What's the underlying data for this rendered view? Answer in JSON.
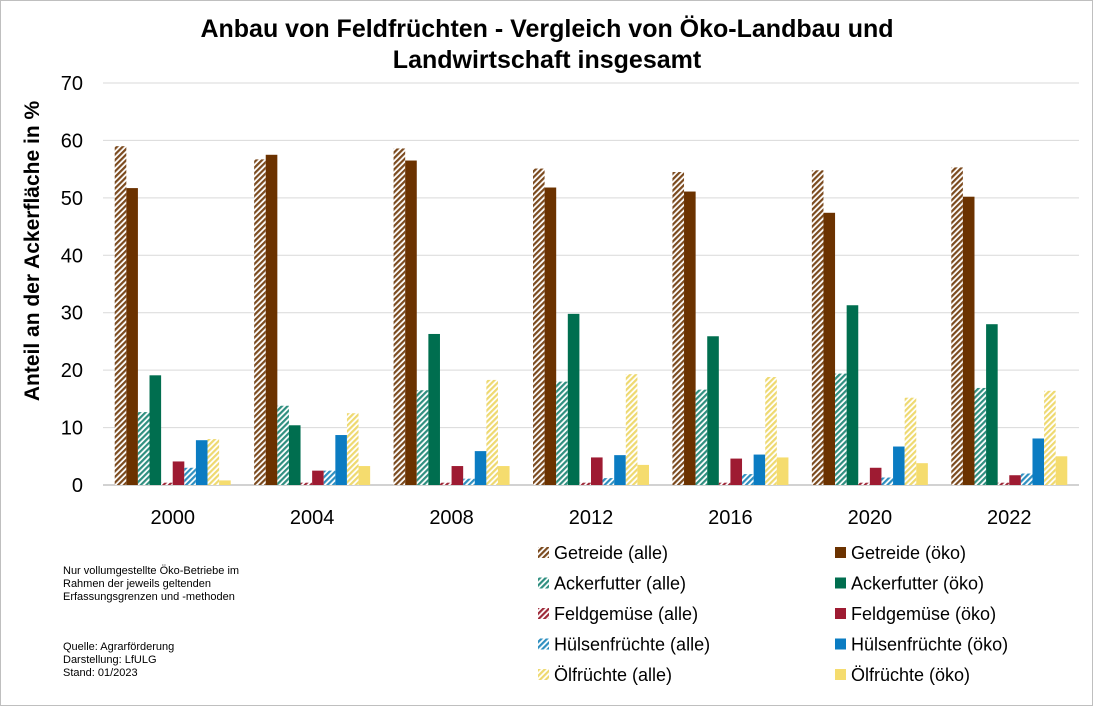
{
  "chart_data": {
    "type": "bar",
    "title_lines": [
      "Anbau von Feldfrüchten - Vergleich von Öko-Landbau und",
      "Landwirtschaft insgesamt"
    ],
    "xlabel": "",
    "ylabel": "Anteil an der Ackerfläche in %",
    "ylim": [
      0,
      70
    ],
    "yticks": [
      0,
      10,
      20,
      30,
      40,
      50,
      60,
      70
    ],
    "grid": true,
    "legend_position": "bottom-right",
    "categories": [
      "2000",
      "2004",
      "2008",
      "2012",
      "2016",
      "2020",
      "2022"
    ],
    "series": [
      {
        "name": "Getreide (alle)",
        "color": "#7B4A1E",
        "pattern": "hatch",
        "values": [
          59.0,
          56.7,
          58.6,
          55.1,
          54.5,
          54.8,
          55.3
        ]
      },
      {
        "name": "Getreide (öko)",
        "color": "#6B3200",
        "pattern": "solid",
        "values": [
          51.7,
          57.5,
          56.5,
          51.8,
          51.1,
          47.4,
          50.2
        ]
      },
      {
        "name": "Ackerfutter (alle)",
        "color": "#2F8F80",
        "pattern": "hatch",
        "values": [
          12.7,
          13.8,
          16.5,
          18.0,
          16.6,
          19.4,
          16.9
        ]
      },
      {
        "name": "Ackerfutter (öko)",
        "color": "#006E4F",
        "pattern": "solid",
        "values": [
          19.1,
          10.4,
          26.3,
          29.8,
          25.9,
          31.3,
          28.0
        ]
      },
      {
        "name": "Feldgemüse (alle)",
        "color": "#9E2A3A",
        "pattern": "hatch",
        "values": [
          0.4,
          0.4,
          0.4,
          0.4,
          0.4,
          0.4,
          0.4
        ]
      },
      {
        "name": "Feldgemüse (öko)",
        "color": "#9E1B32",
        "pattern": "solid",
        "values": [
          4.1,
          2.5,
          3.3,
          4.8,
          4.6,
          3.0,
          1.7
        ]
      },
      {
        "name": "Hülsenfrüchte (alle)",
        "color": "#2E8FC0",
        "pattern": "hatch",
        "values": [
          3.0,
          2.5,
          1.1,
          1.2,
          1.9,
          1.3,
          2.0
        ]
      },
      {
        "name": "Hülsenfrüchte (öko)",
        "color": "#0B7CC2",
        "pattern": "solid",
        "values": [
          7.8,
          8.7,
          5.9,
          5.2,
          5.3,
          6.7,
          8.1
        ]
      },
      {
        "name": "Ölfrüchte (alle)",
        "color": "#EED970",
        "pattern": "hatch",
        "values": [
          8.0,
          12.5,
          18.3,
          19.3,
          18.8,
          15.2,
          16.4
        ]
      },
      {
        "name": "Ölfrüchte (öko)",
        "color": "#F5DC6E",
        "pattern": "solid",
        "values": [
          0.8,
          3.3,
          3.3,
          3.5,
          4.8,
          3.8,
          5.0
        ]
      }
    ]
  },
  "notes": {
    "scope": "Nur vollumgestellte Öko-Betriebe im\nRahmen der jeweils geltenden\nErfassungsgrenzen und -methoden",
    "source": "Quelle: Agrarförderung\nDarstellung: LfULG\nStand: 01/2023"
  }
}
